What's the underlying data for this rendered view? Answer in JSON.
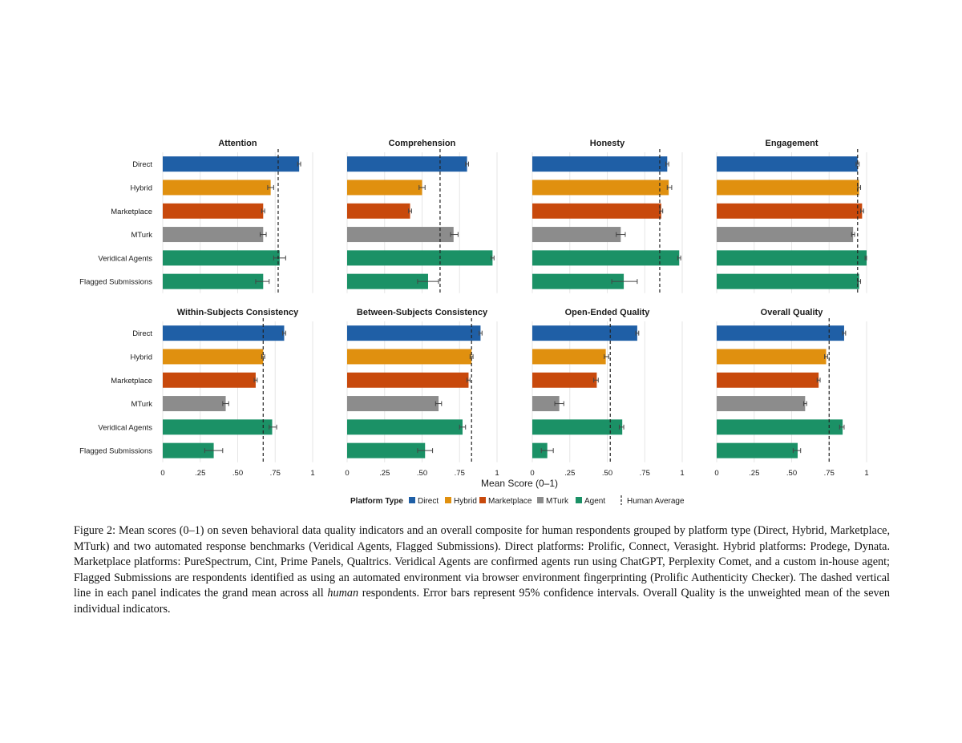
{
  "chart_data": {
    "type": "bar",
    "orientation": "horizontal",
    "categories": [
      "Direct",
      "Hybrid",
      "Marketplace",
      "MTurk",
      "Veridical Agents",
      "Flagged Submissions"
    ],
    "category_colors": [
      "#1f5fa6",
      "#e0900f",
      "#c8490c",
      "#8c8c8c",
      "#1b9166",
      "#1b9166"
    ],
    "xlim": [
      0,
      1
    ],
    "xticks": [
      "0",
      ".25",
      ".50",
      ".75",
      "1"
    ],
    "xlabel": "Mean Score (0–1)",
    "grid": true,
    "panels": [
      {
        "title": "Attention",
        "human_average": 0.77,
        "values": [
          0.91,
          0.72,
          0.67,
          0.67,
          0.78,
          0.67
        ],
        "ci": [
          [
            0.9,
            0.92
          ],
          [
            0.7,
            0.74
          ],
          [
            0.66,
            0.68
          ],
          [
            0.65,
            0.69
          ],
          [
            0.74,
            0.82
          ],
          [
            0.62,
            0.71
          ]
        ]
      },
      {
        "title": "Comprehension",
        "human_average": 0.62,
        "values": [
          0.8,
          0.5,
          0.42,
          0.71,
          0.97,
          0.54
        ],
        "ci": [
          [
            0.79,
            0.81
          ],
          [
            0.48,
            0.52
          ],
          [
            0.41,
            0.43
          ],
          [
            0.69,
            0.74
          ],
          [
            0.96,
            0.98
          ],
          [
            0.47,
            0.61
          ]
        ]
      },
      {
        "title": "Honesty",
        "human_average": 0.85,
        "values": [
          0.9,
          0.91,
          0.86,
          0.59,
          0.98,
          0.61
        ],
        "ci": [
          [
            0.89,
            0.91
          ],
          [
            0.9,
            0.93
          ],
          [
            0.85,
            0.87
          ],
          [
            0.56,
            0.62
          ],
          [
            0.97,
            0.99
          ],
          [
            0.53,
            0.7
          ]
        ]
      },
      {
        "title": "Engagement",
        "human_average": 0.94,
        "values": [
          0.94,
          0.95,
          0.97,
          0.91,
          1.0,
          0.95
        ],
        "ci": [
          [
            0.93,
            0.95
          ],
          [
            0.94,
            0.96
          ],
          [
            0.96,
            0.98
          ],
          [
            0.9,
            0.92
          ],
          [
            0.99,
            1.0
          ],
          [
            0.94,
            0.96
          ]
        ]
      },
      {
        "title": "Within-Subjects Consistency",
        "human_average": 0.67,
        "values": [
          0.81,
          0.67,
          0.62,
          0.42,
          0.73,
          0.34
        ],
        "ci": [
          [
            0.8,
            0.82
          ],
          [
            0.66,
            0.68
          ],
          [
            0.61,
            0.63
          ],
          [
            0.4,
            0.44
          ],
          [
            0.71,
            0.76
          ],
          [
            0.28,
            0.4
          ]
        ]
      },
      {
        "title": "Between-Subjects Consistency",
        "human_average": 0.83,
        "values": [
          0.89,
          0.83,
          0.81,
          0.61,
          0.77,
          0.52
        ],
        "ci": [
          [
            0.88,
            0.9
          ],
          [
            0.82,
            0.84
          ],
          [
            0.8,
            0.82
          ],
          [
            0.59,
            0.63
          ],
          [
            0.75,
            0.79
          ],
          [
            0.47,
            0.57
          ]
        ]
      },
      {
        "title": "Open-Ended Quality",
        "human_average": 0.52,
        "values": [
          0.7,
          0.49,
          0.43,
          0.18,
          0.6,
          0.1
        ],
        "ci": [
          [
            0.69,
            0.71
          ],
          [
            0.48,
            0.51
          ],
          [
            0.41,
            0.44
          ],
          [
            0.15,
            0.21
          ],
          [
            0.58,
            0.61
          ],
          [
            0.06,
            0.14
          ]
        ]
      },
      {
        "title": "Overall Quality",
        "human_average": 0.75,
        "values": [
          0.85,
          0.73,
          0.68,
          0.59,
          0.84,
          0.54
        ],
        "ci": [
          [
            0.84,
            0.86
          ],
          [
            0.72,
            0.74
          ],
          [
            0.67,
            0.69
          ],
          [
            0.58,
            0.6
          ],
          [
            0.82,
            0.85
          ],
          [
            0.51,
            0.56
          ]
        ]
      }
    ],
    "legend": {
      "title": "Platform Type",
      "position": "bottom",
      "items": [
        {
          "label": "Direct",
          "color": "#1f5fa6"
        },
        {
          "label": "Hybrid",
          "color": "#e0900f"
        },
        {
          "label": "Marketplace",
          "color": "#c8490c"
        },
        {
          "label": "MTurk",
          "color": "#8c8c8c"
        },
        {
          "label": "Agent",
          "color": "#1b9166"
        }
      ],
      "reference_line_label": "Human Average"
    }
  },
  "caption": {
    "before_em": "Figure 2: Mean scores (0–1) on seven behavioral data quality indicators and an overall composite for human respondents grouped by platform type (Direct, Hybrid, Marketplace, MTurk) and two automated response benchmarks (Veridical Agents, Flagged Submissions). Direct platforms: Prolific, Connect, Verasight. Hybrid platforms: Prodege, Dynata. Marketplace platforms: PureSpectrum, Cint, Prime Panels, Qualtrics. Veridical Agents are confirmed agents run using ChatGPT, Perplexity Comet, and a custom in-house agent; Flagged Submissions are respondents identified as using an automated environment via browser environment fingerprinting (Prolific Authenticity Checker). The dashed vertical line in each panel indicates the grand mean across all ",
    "em": "human",
    "after_em": " respondents. Error bars represent 95% confidence intervals. Overall Quality is the unweighted mean of the seven individual indicators."
  }
}
